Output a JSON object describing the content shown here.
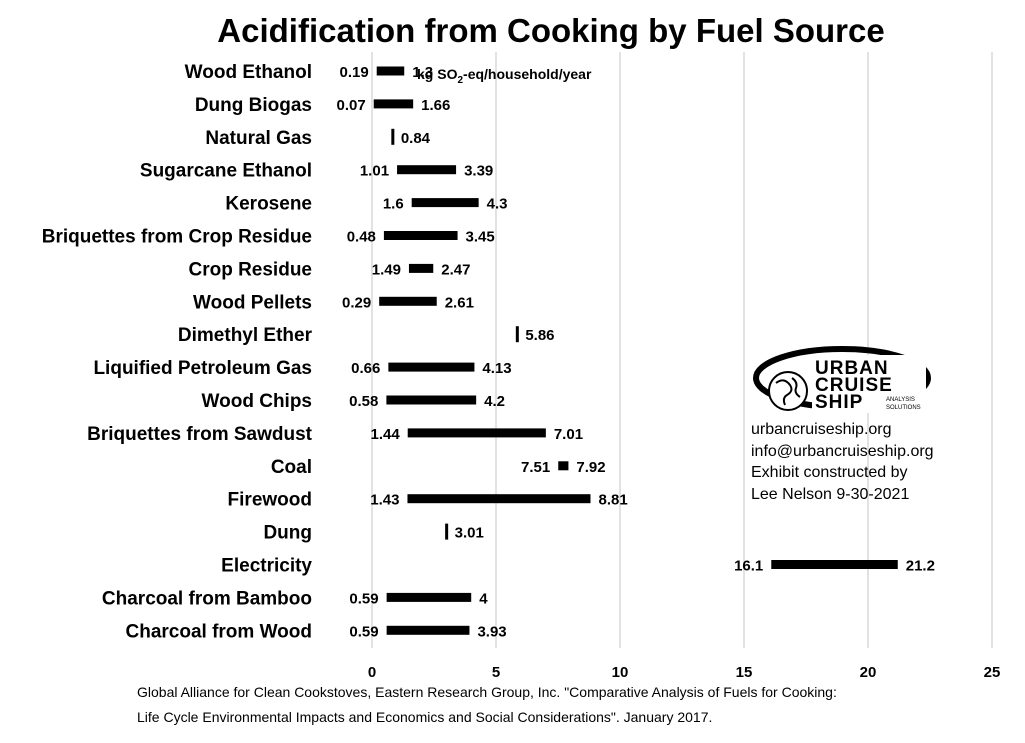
{
  "chart_data": {
    "type": "bar",
    "title": "Acidification from Cooking by Fuel Source",
    "unit_label": {
      "prefix": "kg SO",
      "subscript": "2",
      "suffix": "-eq/household/year"
    },
    "xlim": [
      0,
      25
    ],
    "xticks": [
      0,
      5,
      10,
      15,
      20,
      25
    ],
    "grid": true,
    "categories": [
      "Wood Ethanol",
      "Dung Biogas",
      "Natural Gas",
      "Sugarcane Ethanol",
      "Kerosene",
      "Briquettes from Crop Residue",
      "Crop Residue",
      "Wood Pellets",
      "Dimethyl Ether",
      "Liquified Petroleum Gas",
      "Wood Chips",
      "Briquettes from Sawdust",
      "Coal",
      "Firewood",
      "Dung",
      "Electricity",
      "Charcoal from Bamboo",
      "Charcoal from Wood"
    ],
    "ranges": [
      {
        "low": 0.19,
        "high": 1.3
      },
      {
        "low": 0.07,
        "high": 1.66
      },
      {
        "low": 0.84,
        "high": 0.84
      },
      {
        "low": 1.01,
        "high": 3.39
      },
      {
        "low": 1.6,
        "high": 4.3
      },
      {
        "low": 0.48,
        "high": 3.45
      },
      {
        "low": 1.49,
        "high": 2.47
      },
      {
        "low": 0.29,
        "high": 2.61
      },
      {
        "low": 5.86,
        "high": 5.86
      },
      {
        "low": 0.66,
        "high": 4.13
      },
      {
        "low": 0.58,
        "high": 4.2
      },
      {
        "low": 1.44,
        "high": 7.01
      },
      {
        "low": 7.51,
        "high": 7.92
      },
      {
        "low": 1.43,
        "high": 8.81
      },
      {
        "low": 3.01,
        "high": 3.01
      },
      {
        "low": 16.1,
        "high": 21.2
      },
      {
        "low": 0.59,
        "high": 4
      },
      {
        "low": 0.59,
        "high": 3.93
      }
    ],
    "source": [
      "Global Alliance for Clean Cookstoves, Eastern Research Group, Inc. \"Comparative Analysis of Fuels for Cooking:",
      "Life Cycle Environmental Impacts and Economics and Social Considerations\". January 2017."
    ]
  },
  "credit": {
    "logo_words": [
      "URBAN",
      "CRUISE",
      "SHIP"
    ],
    "logo_tagline": [
      "ANALYSIS",
      "SOLUTIONS"
    ],
    "lines": [
      "urbancruiseship.org",
      "info@urbancruiseship.org",
      "Exhibit constructed by",
      "Lee Nelson 9-30-2021"
    ]
  },
  "colors": {
    "bar": "#000000",
    "grid": "#d9d9d9",
    "text": "#000000"
  }
}
